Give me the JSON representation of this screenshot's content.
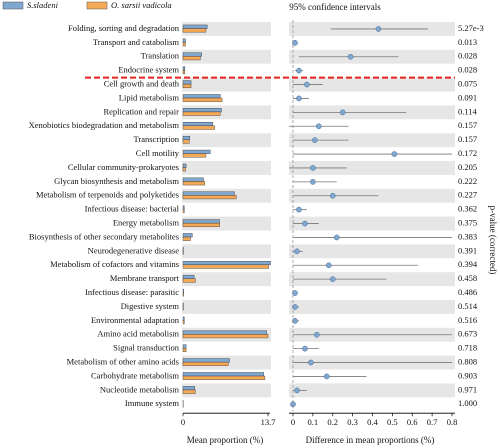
{
  "chart_data": {
    "type": "extended_error_bar",
    "title": "95% confidence intervals",
    "categories": [
      "Folding, sorting and degradation",
      "Transport and catabolism",
      "Translation",
      "Endocrine system",
      "Cell growth and death",
      "Lipid metabolism",
      "Replication and repair",
      "Xenobiotics biodegradation and metabolism",
      "Transcription",
      "Cell motility",
      "Cellular community-prokaryotes",
      "Glycan biosynthesis and metabolism",
      "Metabolism of terpenoids and polyketides",
      "Infectious disease: bacterial",
      "Energy metabolism",
      "Biosynthesis of other secondary metabolites",
      "Neurodegenerative disease",
      "Metabolism of cofactors and vitamins",
      "Membrane transport",
      "Infectious disease: parasitic",
      "Digestive system",
      "Environmental adaptation",
      "Amino acid metabolism",
      "Signal transduction",
      "Metabolism of other amino acids",
      "Carbohydrate metabolism",
      "Nucleotide metabolism",
      "Immune system"
    ],
    "series": [
      {
        "name": "S.sladeni",
        "color": "#7fa7cf",
        "values": [
          3.9,
          0.4,
          3.0,
          0.3,
          1.3,
          6.0,
          6.2,
          4.8,
          1.1,
          4.4,
          0.5,
          3.3,
          8.3,
          0.2,
          5.9,
          1.5,
          0.05,
          14.1,
          1.8,
          0.1,
          0.05,
          0.2,
          13.5,
          0.5,
          7.5,
          13.0,
          1.9,
          0.03
        ]
      },
      {
        "name": "O. sarsii vadicola",
        "color": "#f5a957",
        "values": [
          3.7,
          0.4,
          2.8,
          0.3,
          1.3,
          6.3,
          6.0,
          5.1,
          1.0,
          3.7,
          0.4,
          3.5,
          8.6,
          0.2,
          5.9,
          1.2,
          0.05,
          13.8,
          2.0,
          0.1,
          0.05,
          0.2,
          13.7,
          0.5,
          7.3,
          13.2,
          2.0,
          0.03
        ]
      }
    ],
    "xlim": [
      0,
      13.7
    ],
    "xticks": [
      0,
      13.7
    ],
    "xlabel": "Mean proportion (%)",
    "difference": {
      "values": [
        0.43,
        0.01,
        0.29,
        0.03,
        0.07,
        0.03,
        0.25,
        0.13,
        0.11,
        0.51,
        0.1,
        0.1,
        0.2,
        0.03,
        0.06,
        0.22,
        0.02,
        0.18,
        0.2,
        0.01,
        0.01,
        0.01,
        0.12,
        0.06,
        0.09,
        0.17,
        0.02,
        0.0
      ],
      "ci_low": [
        0.19,
        0.003,
        0.03,
        0.01,
        0.0,
        0.0,
        0.0,
        -0.02,
        0.0,
        0.0,
        -0.02,
        0.0,
        0.0,
        0.0,
        0.0,
        0.0,
        0.0,
        0.0,
        0.0,
        0.0,
        0.0,
        0.0,
        0.0,
        0.0,
        0.0,
        0.0,
        0.0,
        0.0
      ],
      "ci_high": [
        0.68,
        0.017,
        0.53,
        0.05,
        0.15,
        0.08,
        0.57,
        0.28,
        0.28,
        0.8,
        0.27,
        0.22,
        0.43,
        0.07,
        0.13,
        0.8,
        0.05,
        0.63,
        0.47,
        0.02,
        0.03,
        0.03,
        0.8,
        0.13,
        0.8,
        0.37,
        0.07,
        0.01
      ],
      "color": "#7fa7cf"
    },
    "x2lim": [
      -0.02,
      0.8
    ],
    "x2ticks": [
      0,
      0.1,
      0.2,
      0.3,
      0.4,
      0.5,
      0.6,
      0.7,
      0.8
    ],
    "x2label": "Difference in mean proportions (%)",
    "p_values": {
      "values": [
        0.00527,
        0.013,
        0.028,
        0.028,
        0.075,
        0.091,
        0.114,
        0.157,
        0.157,
        0.172,
        0.205,
        0.222,
        0.227,
        0.362,
        0.375,
        0.383,
        0.391,
        0.394,
        0.458,
        0.486,
        0.514,
        0.516,
        0.673,
        0.718,
        0.808,
        0.903,
        0.971,
        1.0
      ],
      "value_labels": [
        "5.27e-3",
        "0.013",
        "0.028",
        "0.028",
        "0.075",
        "0.091",
        "0.114",
        "0.157",
        "0.157",
        "0.172",
        "0.205",
        "0.222",
        "0.227",
        "0.362",
        "0.375",
        "0.383",
        "0.391",
        "0.394",
        "0.458",
        "0.486",
        "0.514",
        "0.516",
        "0.673",
        "0.718",
        "0.808",
        "0.903",
        "0.971",
        "1.000"
      ],
      "label": "p-value (corrected)"
    },
    "threshold_after": 3,
    "threshold_color": "#e8231c"
  }
}
